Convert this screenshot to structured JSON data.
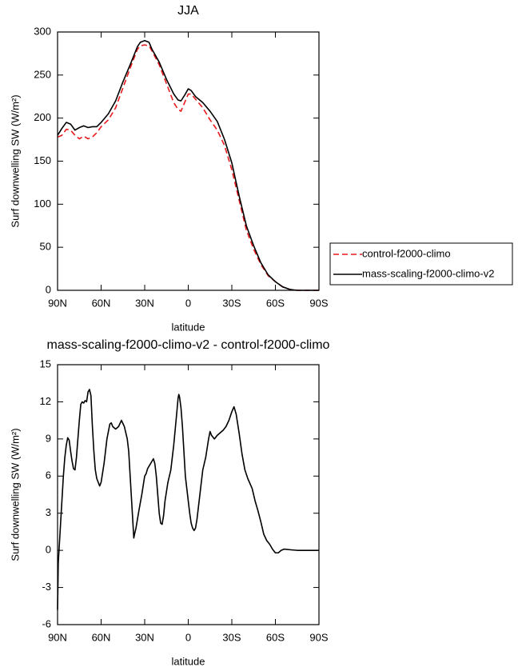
{
  "chart_data": [
    {
      "type": "line",
      "title": "JJA",
      "xlabel": "latitude",
      "ylabel": "Surf downwelling SW (W/m²)",
      "xlim": [
        90,
        -90
      ],
      "xticks": [
        {
          "value": 90,
          "label": "90N"
        },
        {
          "value": 60,
          "label": "60N"
        },
        {
          "value": 30,
          "label": "30N"
        },
        {
          "value": 0,
          "label": "0"
        },
        {
          "value": -30,
          "label": "30S"
        },
        {
          "value": -60,
          "label": "60S"
        },
        {
          "value": -90,
          "label": "90S"
        }
      ],
      "ylim": [
        0,
        300
      ],
      "yticks": [
        0,
        50,
        100,
        150,
        200,
        250,
        300
      ],
      "legend": "right",
      "x": [
        90,
        87,
        84,
        81,
        78,
        75,
        72,
        69,
        66,
        63,
        60,
        55,
        50,
        45,
        40,
        35,
        33,
        30,
        27,
        25,
        20,
        15,
        10,
        7,
        5,
        2,
        0,
        -2,
        -5,
        -10,
        -15,
        -20,
        -25,
        -30,
        -35,
        -40,
        -45,
        -50,
        -55,
        -60,
        -65,
        -70,
        -75,
        -80,
        -85,
        -90
      ],
      "series": [
        {
          "name": "control-f2000-climo",
          "color": "#e8191c",
          "linestyle": "dashed",
          "values": [
            178,
            180,
            187,
            186,
            180,
            176,
            179,
            176,
            178,
            183,
            190,
            198,
            212,
            235,
            258,
            280,
            284,
            285,
            284,
            278,
            262,
            240,
            218,
            210,
            208,
            220,
            228,
            228,
            222,
            212,
            198,
            186,
            168,
            140,
            105,
            70,
            48,
            30,
            17,
            10,
            4,
            1,
            0,
            0,
            0,
            0
          ]
        },
        {
          "name": "mass-scaling-f2000-climo-v2",
          "color": "#000000",
          "linestyle": "solid",
          "values": [
            180,
            188,
            195,
            193,
            186,
            189,
            191,
            189,
            190,
            190,
            195,
            205,
            220,
            242,
            262,
            283,
            288,
            290,
            288,
            280,
            265,
            245,
            228,
            221,
            220,
            228,
            234,
            232,
            225,
            218,
            208,
            196,
            175,
            148,
            110,
            75,
            52,
            32,
            18,
            10,
            4,
            1,
            0,
            0,
            0,
            0
          ]
        }
      ]
    },
    {
      "type": "line",
      "title": "mass-scaling-f2000-climo-v2 - control-f2000-climo",
      "xlabel": "latitude",
      "ylabel": "Surf downwelling SW (W/m²)",
      "xlim": [
        90,
        -90
      ],
      "xticks": [
        {
          "value": 90,
          "label": "90N"
        },
        {
          "value": 60,
          "label": "60N"
        },
        {
          "value": 30,
          "label": "30N"
        },
        {
          "value": 0,
          "label": "0"
        },
        {
          "value": -30,
          "label": "30S"
        },
        {
          "value": -60,
          "label": "60S"
        },
        {
          "value": -90,
          "label": "90S"
        }
      ],
      "ylim": [
        -6,
        15
      ],
      "yticks": [
        -6,
        -3,
        0,
        3,
        6,
        9,
        12,
        15
      ],
      "x": [
        90,
        89.5,
        89,
        88,
        87,
        86,
        85,
        84,
        83,
        82,
        81,
        80,
        79,
        78,
        77,
        76,
        75,
        74,
        73,
        72,
        71,
        70,
        69,
        68,
        67,
        66,
        65,
        64,
        63,
        62,
        61,
        60,
        58,
        56,
        54,
        53,
        52,
        50,
        48,
        46,
        44,
        42,
        41,
        40,
        39,
        38,
        37.5,
        37,
        36,
        35,
        34,
        32,
        30,
        29,
        28,
        26,
        24,
        23,
        22,
        21,
        20,
        19,
        18,
        17,
        16,
        14,
        12,
        10,
        8,
        7,
        6.5,
        6,
        5,
        4,
        3,
        2,
        1,
        0,
        -1,
        -2,
        -3,
        -4,
        -5,
        -6,
        -8,
        -10,
        -12,
        -14,
        -15,
        -16,
        -18,
        -20,
        -22,
        -24,
        -26,
        -28,
        -30,
        -31.5,
        -33,
        -35,
        -37,
        -39,
        -41,
        -44,
        -46,
        -48,
        -50,
        -52,
        -54,
        -56,
        -58,
        -60,
        -62,
        -64,
        -66,
        -70,
        -75,
        -80,
        -90
      ],
      "series": [
        {
          "name": "mass-scaling-f2000-climo-v2 - control-f2000-climo",
          "color": "#000000",
          "linestyle": "solid",
          "values": [
            -4.8,
            -1,
            0,
            2,
            4,
            6,
            7.5,
            8.5,
            9.1,
            8.9,
            8,
            7.2,
            6.6,
            6.5,
            7.5,
            9,
            10.5,
            11.8,
            12,
            11.9,
            12.1,
            12,
            12.8,
            13,
            12.5,
            10,
            8,
            6.5,
            5.8,
            5.5,
            5.2,
            5.5,
            7,
            9,
            10.2,
            10.3,
            10,
            9.8,
            10,
            10.5,
            10,
            9,
            8,
            6,
            4,
            2,
            1,
            1.3,
            1.8,
            2.5,
            3.2,
            4.5,
            6,
            6.2,
            6.6,
            7,
            7.4,
            7,
            6,
            4.5,
            3,
            2.2,
            2.1,
            2.8,
            4,
            5.5,
            6.5,
            8.5,
            11,
            12.3,
            12.6,
            12.4,
            11.5,
            10,
            8,
            6,
            5,
            4,
            3,
            2.2,
            1.8,
            1.6,
            1.8,
            2.5,
            4.5,
            6.5,
            7.5,
            9,
            9.6,
            9.3,
            9,
            9.3,
            9.5,
            9.7,
            10,
            10.5,
            11.2,
            11.6,
            11,
            9.5,
            7.8,
            6.5,
            5.8,
            5,
            4,
            3.2,
            2.3,
            1.3,
            0.8,
            0.5,
            0.1,
            -0.2,
            -0.2,
            0,
            0.1,
            0.05,
            0,
            0,
            0
          ]
        }
      ]
    }
  ]
}
